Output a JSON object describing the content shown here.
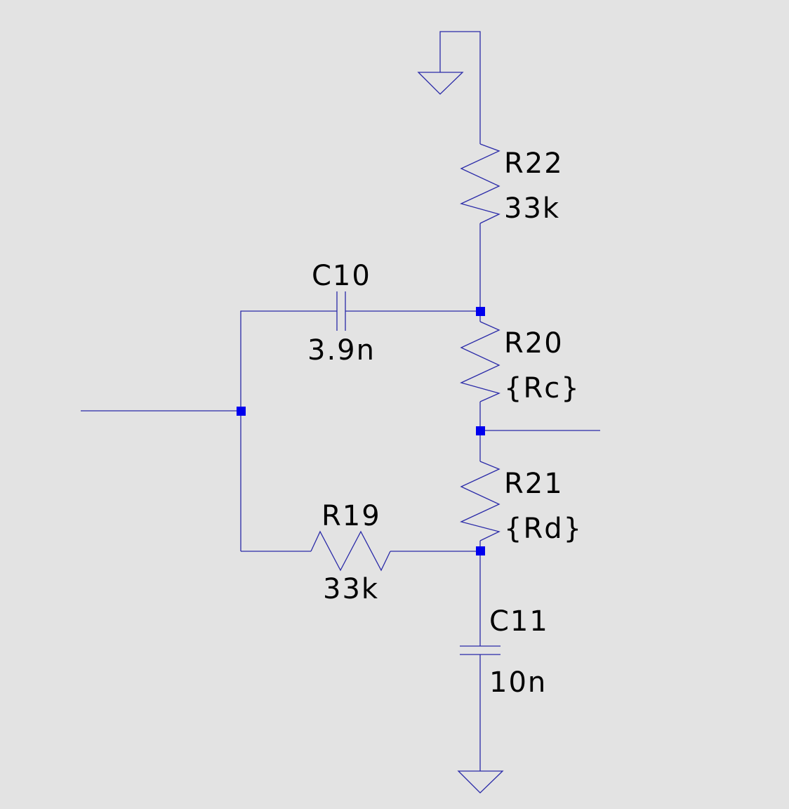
{
  "components": {
    "R22": {
      "designator": "R22",
      "value": "33k"
    },
    "R20": {
      "designator": "R20",
      "value": "{Rc}"
    },
    "R21": {
      "designator": "R21",
      "value": "{Rd}"
    },
    "R19": {
      "designator": "R19",
      "value": "33k"
    },
    "C10": {
      "designator": "C10",
      "value": "3.9n"
    },
    "C11": {
      "designator": "C11",
      "value": "10n"
    }
  },
  "colors": {
    "background": "#e3e3e3",
    "wire": "#2a2aa8",
    "junction": "#0000ee",
    "text": "#000000"
  }
}
